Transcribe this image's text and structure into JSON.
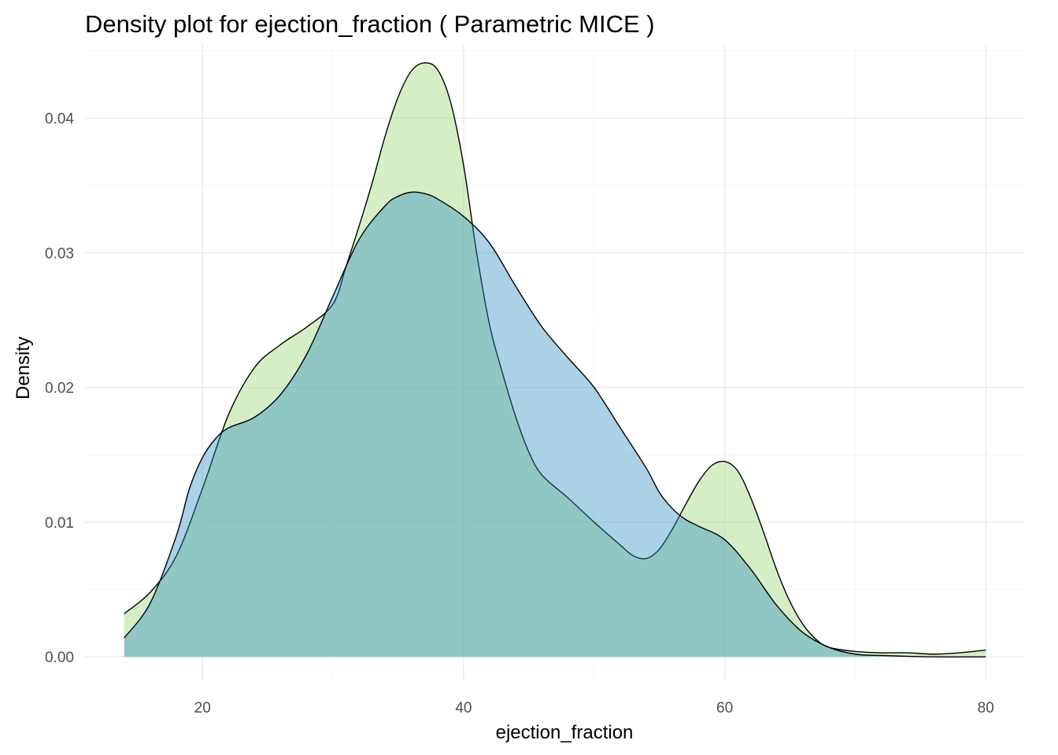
{
  "chart_data": {
    "type": "area",
    "title": "Density plot for ejection_fraction ( Parametric MICE )",
    "xlabel": "ejection_fraction",
    "ylabel": "Density",
    "xlim": [
      11,
      83
    ],
    "ylim": [
      -0.0018,
      0.0455
    ],
    "x_ticks": [
      20,
      40,
      60,
      80
    ],
    "y_ticks": [
      0.0,
      0.01,
      0.02,
      0.03,
      0.04
    ],
    "x_tick_labels": [
      "20",
      "40",
      "60",
      "80"
    ],
    "y_tick_labels": [
      "0.00",
      "0.01",
      "0.02",
      "0.03",
      "0.04"
    ],
    "grid": true,
    "legend": "none",
    "series": [
      {
        "color": "#addd8e",
        "opacity": 0.5,
        "points": [
          [
            14,
            0.0032
          ],
          [
            16,
            0.0048
          ],
          [
            18,
            0.0075
          ],
          [
            20,
            0.0125
          ],
          [
            22,
            0.018
          ],
          [
            24,
            0.0215
          ],
          [
            26,
            0.0232
          ],
          [
            28,
            0.0245
          ],
          [
            30,
            0.0262
          ],
          [
            31,
            0.029
          ],
          [
            32,
            0.032
          ],
          [
            33,
            0.0352
          ],
          [
            34,
            0.0387
          ],
          [
            35,
            0.0416
          ],
          [
            36,
            0.0435
          ],
          [
            37,
            0.0441
          ],
          [
            38,
            0.0436
          ],
          [
            39,
            0.0412
          ],
          [
            40,
            0.0365
          ],
          [
            41,
            0.03
          ],
          [
            42,
            0.0246
          ],
          [
            43,
            0.021
          ],
          [
            44,
            0.0178
          ],
          [
            45,
            0.0152
          ],
          [
            46,
            0.0135
          ],
          [
            48,
            0.0118
          ],
          [
            50,
            0.01
          ],
          [
            52,
            0.0083
          ],
          [
            53,
            0.0075
          ],
          [
            54,
            0.0073
          ],
          [
            55,
            0.008
          ],
          [
            56,
            0.0095
          ],
          [
            57,
            0.0113
          ],
          [
            58,
            0.013
          ],
          [
            59,
            0.0142
          ],
          [
            60,
            0.0145
          ],
          [
            61,
            0.0138
          ],
          [
            62,
            0.0118
          ],
          [
            63,
            0.0092
          ],
          [
            64,
            0.0064
          ],
          [
            65,
            0.0041
          ],
          [
            66,
            0.0024
          ],
          [
            67,
            0.0013
          ],
          [
            68,
            0.0007
          ],
          [
            70,
            0.0004
          ],
          [
            72,
            0.0003
          ],
          [
            74,
            0.0003
          ],
          [
            76,
            0.0002
          ],
          [
            78,
            0.0003
          ],
          [
            80,
            0.0005
          ]
        ]
      },
      {
        "color": "#2b8cbe",
        "opacity": 0.4,
        "points": [
          [
            14,
            0.0014
          ],
          [
            16,
            0.004
          ],
          [
            18,
            0.009
          ],
          [
            19,
            0.0125
          ],
          [
            20,
            0.0148
          ],
          [
            21,
            0.0162
          ],
          [
            22,
            0.017
          ],
          [
            24,
            0.0178
          ],
          [
            26,
            0.0195
          ],
          [
            28,
            0.0225
          ],
          [
            30,
            0.0268
          ],
          [
            32,
            0.031
          ],
          [
            34,
            0.0335
          ],
          [
            35,
            0.0342
          ],
          [
            36,
            0.0345
          ],
          [
            37,
            0.0344
          ],
          [
            38,
            0.034
          ],
          [
            40,
            0.0327
          ],
          [
            42,
            0.0307
          ],
          [
            44,
            0.0275
          ],
          [
            46,
            0.0245
          ],
          [
            48,
            0.0222
          ],
          [
            50,
            0.02
          ],
          [
            52,
            0.017
          ],
          [
            54,
            0.014
          ],
          [
            55,
            0.0122
          ],
          [
            56,
            0.011
          ],
          [
            57,
            0.0102
          ],
          [
            58,
            0.0097
          ],
          [
            60,
            0.0087
          ],
          [
            62,
            0.0065
          ],
          [
            64,
            0.0038
          ],
          [
            66,
            0.0018
          ],
          [
            68,
            0.0007
          ],
          [
            70,
            0.0002
          ],
          [
            72,
            0.0001
          ],
          [
            76,
            0.0
          ],
          [
            80,
            0.0
          ]
        ]
      }
    ]
  }
}
